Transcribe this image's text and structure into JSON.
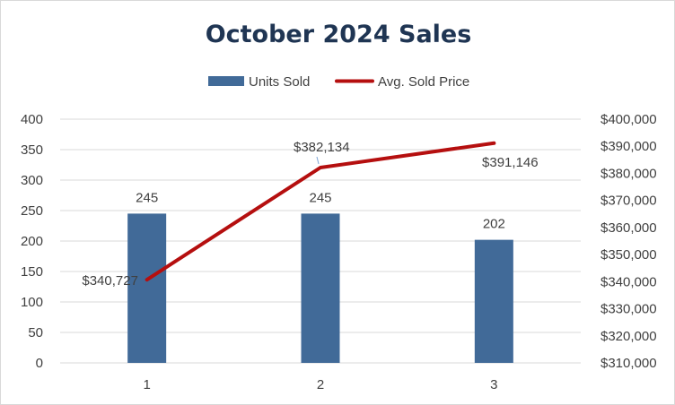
{
  "chart_data": {
    "type": "bar",
    "title": "October 2024 Sales",
    "categories": [
      "1",
      "2",
      "3"
    ],
    "series": [
      {
        "name": "Units Sold",
        "type": "bar",
        "axis": "left",
        "color": "#416a98",
        "values": [
          245,
          245,
          202
        ],
        "labels": [
          "245",
          "245",
          "202"
        ]
      },
      {
        "name": "Avg. Sold Price",
        "type": "line",
        "axis": "right",
        "color": "#b50f0f",
        "values": [
          340727,
          382134,
          391146
        ],
        "labels": [
          "$340,727",
          "$382,134",
          "$391,146"
        ]
      }
    ],
    "y_left": {
      "ylim": [
        0,
        400
      ],
      "ticks": [
        0,
        50,
        100,
        150,
        200,
        250,
        300,
        350,
        400
      ],
      "tick_labels": [
        "0",
        "50",
        "100",
        "150",
        "200",
        "250",
        "300",
        "350",
        "400"
      ]
    },
    "y_right": {
      "ylim": [
        310000,
        400000
      ],
      "ticks": [
        310000,
        320000,
        330000,
        340000,
        350000,
        360000,
        370000,
        380000,
        390000,
        400000
      ],
      "tick_labels": [
        "$310,000",
        "$320,000",
        "$330,000",
        "$340,000",
        "$350,000",
        "$360,000",
        "$370,000",
        "$380,000",
        "$390,000",
        "$400,000"
      ]
    },
    "grid": true,
    "legend_position": "top"
  }
}
